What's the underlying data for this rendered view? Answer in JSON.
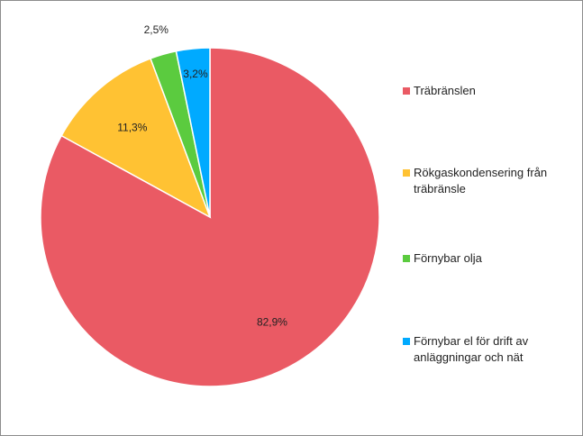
{
  "chart_data": {
    "type": "pie",
    "title": "",
    "start": "top",
    "direction": "clockwise",
    "legend_position": "right",
    "slices": [
      {
        "name": "Träbränslen",
        "value": 82.9,
        "label": "82,9%",
        "color": "#EA5A64"
      },
      {
        "name": "Rökgaskondensering från träbränsle",
        "value": 11.3,
        "label": "11,3%",
        "color": "#FFC233"
      },
      {
        "name": "Förnybar olja",
        "value": 2.5,
        "label": "2,5%",
        "color": "#5BCB3F"
      },
      {
        "name": "Förnybar el för drift av anläggningar och nät",
        "value": 3.2,
        "label": "3,2%",
        "color": "#00AAFF"
      }
    ]
  }
}
